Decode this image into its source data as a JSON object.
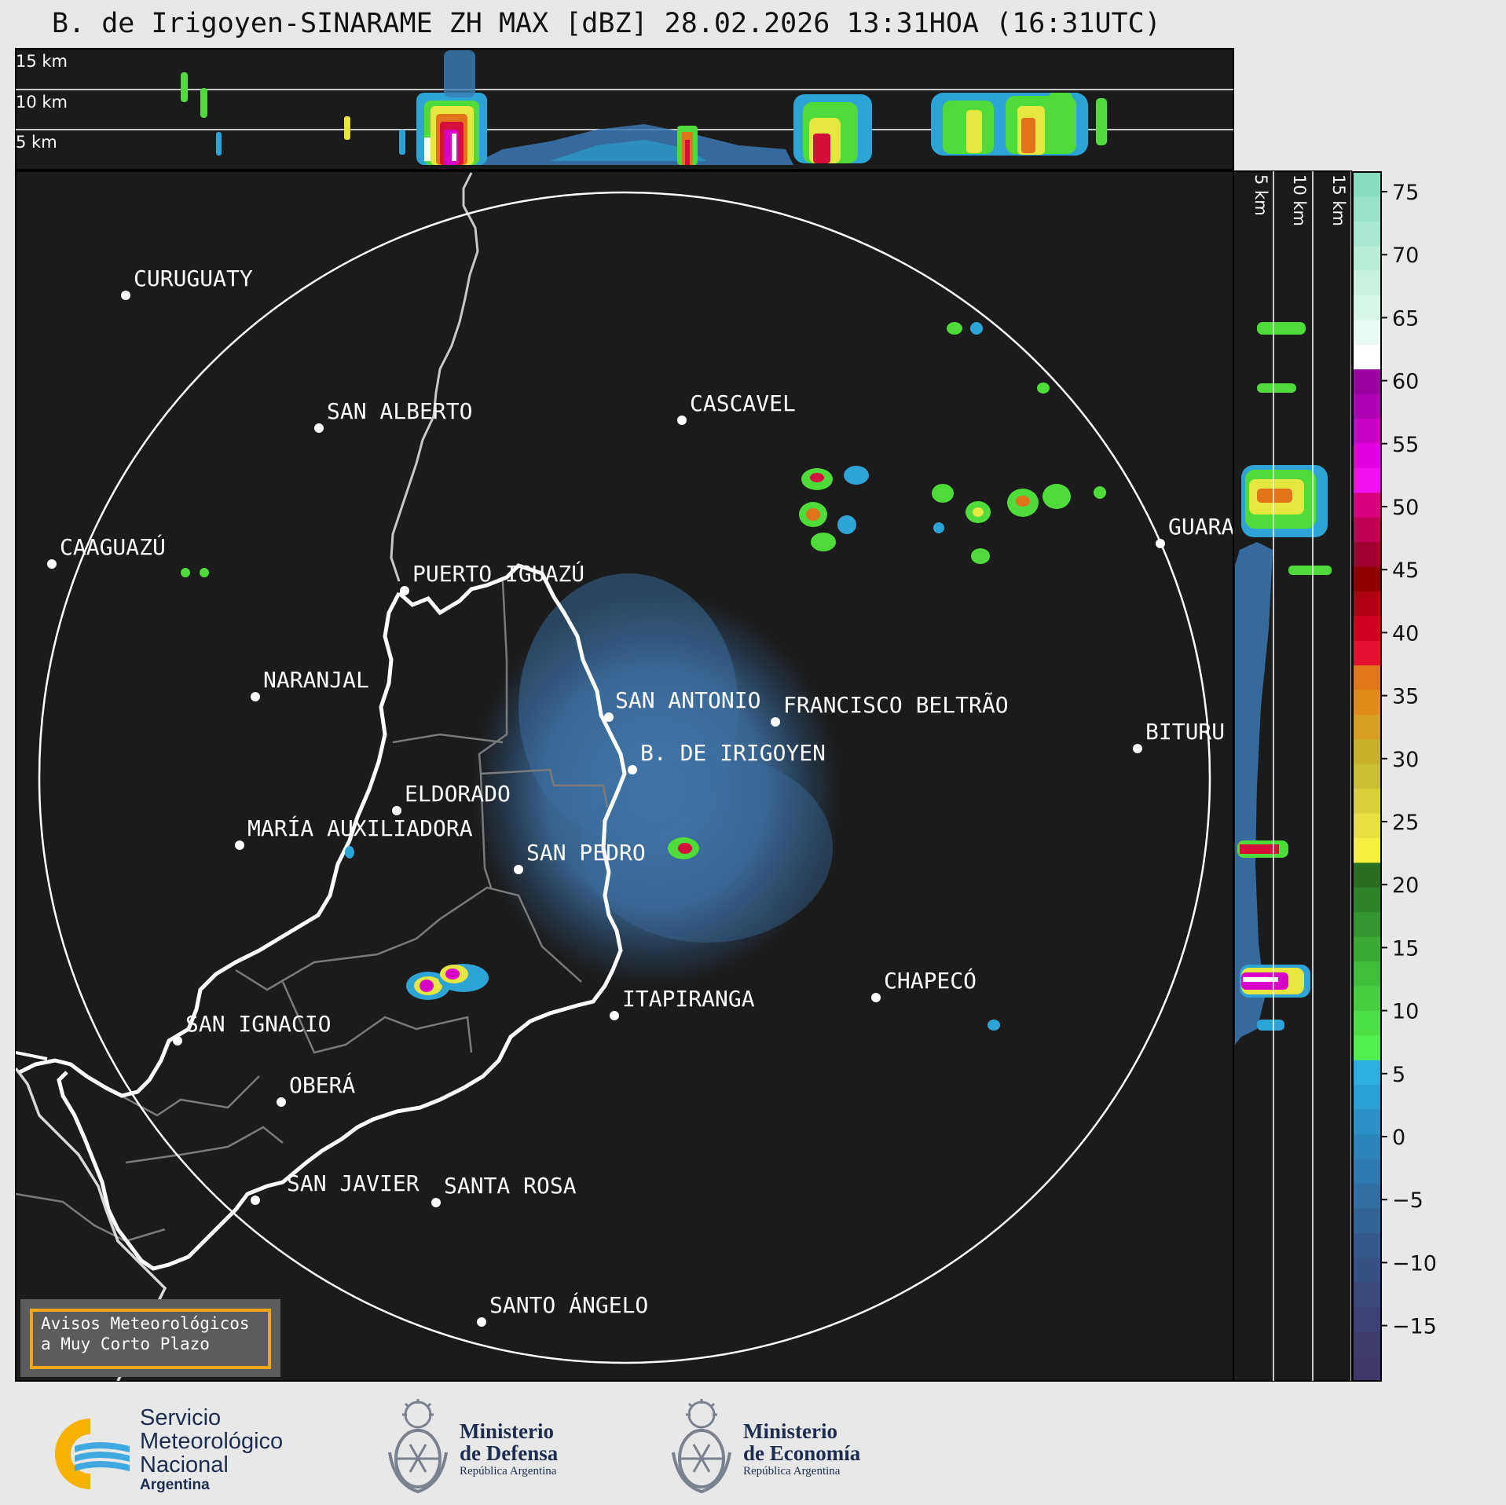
{
  "title": "B. de Irigoyen-SINARAME ZH MAX [dBZ] 28.02.2026 13:31HOA (16:31UTC)",
  "top_profile": {
    "altitude_labels": [
      "15 km",
      "10 km",
      "5 km"
    ]
  },
  "side_profile": {
    "altitude_labels": [
      "5 km",
      "10 km",
      "15 km"
    ]
  },
  "colorbar": {
    "unit": "dBZ",
    "ticks": [
      "75",
      "70",
      "65",
      "60",
      "55",
      "50",
      "45",
      "40",
      "35",
      "30",
      "25",
      "20",
      "15",
      "10",
      "5",
      "0",
      "−5",
      "−10",
      "−15"
    ]
  },
  "cities": [
    {
      "name": "CURUGUATY"
    },
    {
      "name": "SAN ALBERTO"
    },
    {
      "name": "CASCAVEL"
    },
    {
      "name": "CAAGUAZÚ"
    },
    {
      "name": "PUERTO IGUAZÚ"
    },
    {
      "name": "GUARA"
    },
    {
      "name": "NARANJAL"
    },
    {
      "name": "SAN ANTONIO"
    },
    {
      "name": "FRANCISCO BELTRÃO"
    },
    {
      "name": "BITURU"
    },
    {
      "name": "B. DE IRIGOYEN"
    },
    {
      "name": "ELDORADO"
    },
    {
      "name": "MARÍA AUXILIADORA"
    },
    {
      "name": "SAN PEDRO"
    },
    {
      "name": "CHAPECÓ"
    },
    {
      "name": "ITAPIRANGA"
    },
    {
      "name": "SAN IGNACIO"
    },
    {
      "name": "OBERÁ"
    },
    {
      "name": "SAN JAVIER"
    },
    {
      "name": "SANTA ROSA"
    },
    {
      "name": "SANTO ÁNGELO"
    }
  ],
  "aviso": {
    "line1": "Avisos Meteorológicos",
    "line2": "a Muy Corto Plazo"
  },
  "footer": {
    "smn": {
      "line1": "Servicio",
      "line2": "Meteorológico",
      "line3": "Nacional",
      "line4": "Argentina"
    },
    "defensa": {
      "line1": "Ministerio",
      "line2": "de Defensa",
      "line3": "República Argentina"
    },
    "economia": {
      "line1": "Ministerio",
      "line2": "de Economía",
      "line3": "República Argentina"
    }
  }
}
